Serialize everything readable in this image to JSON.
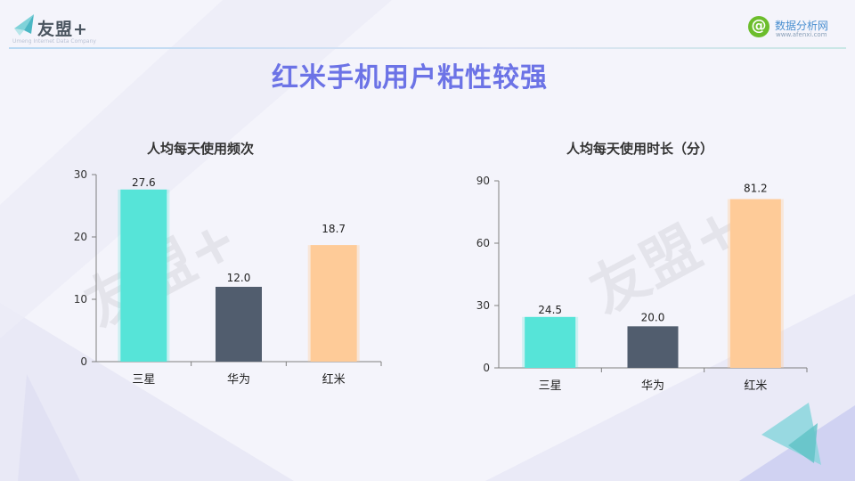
{
  "header": {
    "brand": "友盟+",
    "brand_sub": "Umeng Internet Data Company",
    "site_name": "数据分析网",
    "site_url": "www.afenxi.com",
    "site_symbol": "@"
  },
  "page_title": "红米手机用户粘性较强",
  "watermark": "友盟+",
  "colors": {
    "background": "#f4f4fb",
    "title": "#6c73e6",
    "samsung": "#56e4d8",
    "huawei": "#515d6e",
    "redmi": "#fecb98",
    "axis": "#7f7f7f"
  },
  "chart_data": [
    {
      "type": "bar",
      "title": "人均每天使用频次",
      "categories": [
        "三星",
        "华为",
        "红米"
      ],
      "values": [
        27.6,
        12.0,
        18.7
      ],
      "value_labels": [
        "27.6",
        "12.0",
        "18.7"
      ],
      "ylim": [
        0,
        30
      ],
      "yticks": [
        "0",
        "10",
        "20",
        "30"
      ],
      "xlabel": "",
      "ylabel": "",
      "grid": false,
      "legend": "none"
    },
    {
      "type": "bar",
      "title": "人均每天使用时长（分）",
      "categories": [
        "三星",
        "华为",
        "红米"
      ],
      "values": [
        24.5,
        20.0,
        81.2
      ],
      "value_labels": [
        "24.5",
        "20.0",
        "81.2"
      ],
      "ylim": [
        0,
        90
      ],
      "yticks": [
        "0",
        "30",
        "60",
        "90"
      ],
      "xlabel": "",
      "ylabel": "",
      "grid": false,
      "legend": "none"
    }
  ]
}
